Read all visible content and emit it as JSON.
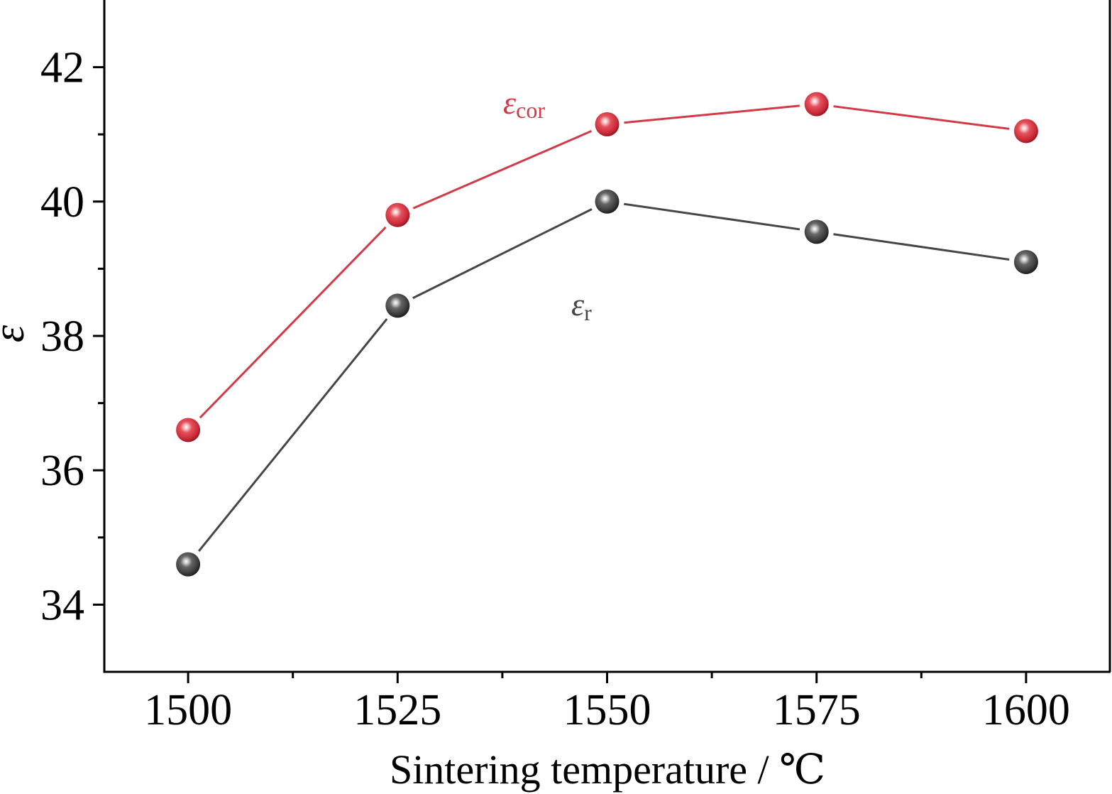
{
  "chart_data": {
    "type": "line",
    "xlabel": "Sintering temperature / ℃",
    "ylabel": "ε",
    "x": [
      1500,
      1525,
      1550,
      1575,
      1600
    ],
    "xlim": [
      1490,
      1610
    ],
    "ylim": [
      33,
      43
    ],
    "xticks": [
      "1500",
      "1525",
      "1550",
      "1575",
      "1600"
    ],
    "yticks": [
      "34",
      "36",
      "38",
      "40",
      "42"
    ],
    "grid": false,
    "series": [
      {
        "label_main": "ε",
        "label_sub": "cor",
        "color": "#d23a47",
        "values": [
          36.6,
          39.8,
          41.15,
          41.45,
          41.05
        ]
      },
      {
        "label_main": "ε",
        "label_sub": "r",
        "color": "#464646",
        "values": [
          34.6,
          38.45,
          40.0,
          39.55,
          39.1
        ]
      }
    ]
  }
}
